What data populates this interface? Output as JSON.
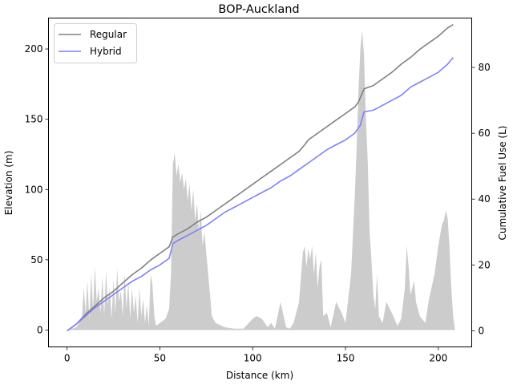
{
  "chart_data": {
    "type": "line",
    "title": "BOP-Auckland",
    "xlabel": "Distance (km)",
    "ylabel_left": "Elevation (m)",
    "ylabel_right": "Cumulative Fuel Use (L)",
    "xlim": [
      -10,
      218
    ],
    "ylim_left": [
      -12,
      222
    ],
    "ylim_right": [
      -4.9,
      95
    ],
    "xticks": [
      0,
      50,
      100,
      150,
      200
    ],
    "yticks_left": [
      0,
      50,
      100,
      150,
      200
    ],
    "yticks_right": [
      0,
      20,
      40,
      60,
      80
    ],
    "legend_position": "top-left",
    "colors": {
      "Regular": "#808080",
      "Hybrid": "#7f7fff",
      "elevation": "#cccccc"
    },
    "elevation": {
      "name": "Elevation",
      "x": [
        0,
        5,
        8,
        9,
        10,
        11,
        12,
        13,
        14,
        15,
        16,
        17,
        18,
        19,
        20,
        21,
        22,
        23,
        24,
        25,
        26,
        27,
        28,
        29,
        30,
        31,
        32,
        33,
        34,
        35,
        36,
        37,
        38,
        39,
        40,
        41,
        42,
        43,
        44,
        45,
        46,
        47,
        48,
        50,
        53,
        55,
        56,
        57,
        58,
        59,
        60,
        61,
        62,
        63,
        64,
        65,
        66,
        67,
        68,
        69,
        70,
        71,
        72,
        73,
        74,
        75,
        76,
        78,
        80,
        85,
        90,
        95,
        100,
        102,
        105,
        108,
        110,
        112,
        115,
        118,
        120,
        122,
        125,
        127,
        128,
        129,
        130,
        131,
        132,
        133,
        134,
        135,
        136,
        137,
        138,
        140,
        142,
        145,
        148,
        150,
        153,
        155,
        156,
        157,
        158,
        159,
        160,
        161,
        162,
        163,
        164,
        165,
        166,
        167,
        168,
        170,
        172,
        175,
        178,
        180,
        182,
        183,
        184,
        185,
        186,
        187,
        188,
        190,
        193,
        195,
        198,
        200,
        202,
        203,
        204,
        205,
        206,
        207,
        208,
        209
      ],
      "values": [
        0,
        2,
        8,
        30,
        12,
        35,
        8,
        40,
        15,
        45,
        20,
        30,
        12,
        38,
        10,
        42,
        18,
        30,
        8,
        36,
        12,
        44,
        20,
        28,
        10,
        40,
        15,
        35,
        8,
        30,
        12,
        25,
        5,
        30,
        10,
        22,
        5,
        18,
        3,
        40,
        32,
        10,
        3,
        5,
        8,
        15,
        40,
        118,
        126,
        110,
        118,
        105,
        112,
        100,
        108,
        92,
        104,
        85,
        100,
        78,
        90,
        70,
        85,
        60,
        70,
        55,
        40,
        10,
        5,
        2,
        1,
        1,
        8,
        10,
        8,
        2,
        5,
        1,
        20,
        2,
        1,
        5,
        20,
        55,
        60,
        45,
        58,
        50,
        60,
        40,
        55,
        30,
        45,
        50,
        10,
        12,
        2,
        20,
        12,
        5,
        40,
        95,
        130,
        170,
        200,
        213,
        195,
        150,
        120,
        70,
        50,
        25,
        15,
        40,
        10,
        5,
        20,
        12,
        3,
        8,
        30,
        60,
        45,
        25,
        30,
        35,
        20,
        10,
        5,
        22,
        40,
        60,
        75,
        78,
        85,
        80,
        60,
        30,
        10,
        0
      ]
    },
    "series": [
      {
        "name": "Regular",
        "x": [
          0,
          5,
          10,
          15,
          20,
          25,
          30,
          35,
          40,
          45,
          50,
          55,
          57,
          60,
          65,
          70,
          75,
          80,
          85,
          90,
          95,
          100,
          105,
          110,
          115,
          120,
          125,
          128,
          130,
          135,
          140,
          145,
          150,
          155,
          157,
          160,
          165,
          170,
          175,
          180,
          185,
          190,
          195,
          200,
          205,
          208
        ],
        "values": [
          0,
          2,
          5,
          7.5,
          10,
          12,
          14.5,
          17,
          19,
          21.5,
          23.5,
          25.5,
          28.5,
          29.5,
          31,
          33,
          34.5,
          36.5,
          38.5,
          40.5,
          42.5,
          44.5,
          46.5,
          48.5,
          50.5,
          52.5,
          54.5,
          56.5,
          58,
          60,
          62,
          64,
          66,
          68,
          69.5,
          73.5,
          74.5,
          76.5,
          78.5,
          81,
          83,
          85.5,
          87.5,
          89.5,
          92,
          93
        ]
      },
      {
        "name": "Hybrid",
        "x": [
          0,
          5,
          10,
          15,
          20,
          25,
          30,
          35,
          40,
          45,
          50,
          55,
          57,
          60,
          65,
          70,
          75,
          80,
          85,
          90,
          95,
          100,
          105,
          110,
          115,
          120,
          125,
          130,
          135,
          140,
          145,
          150,
          155,
          158,
          160,
          165,
          170,
          175,
          180,
          185,
          190,
          195,
          200,
          205,
          208
        ],
        "values": [
          0,
          2,
          4.5,
          7,
          9,
          11,
          13,
          15,
          16.5,
          18.5,
          20,
          22,
          26.5,
          27.5,
          29,
          30.5,
          32,
          34,
          36,
          37.5,
          39,
          40.5,
          42,
          43.5,
          45.5,
          47,
          49,
          51,
          53,
          55,
          56.5,
          58,
          60,
          62.5,
          66.5,
          67,
          68.5,
          70,
          71.5,
          74,
          75.5,
          77,
          78.5,
          81,
          83
        ]
      }
    ]
  }
}
